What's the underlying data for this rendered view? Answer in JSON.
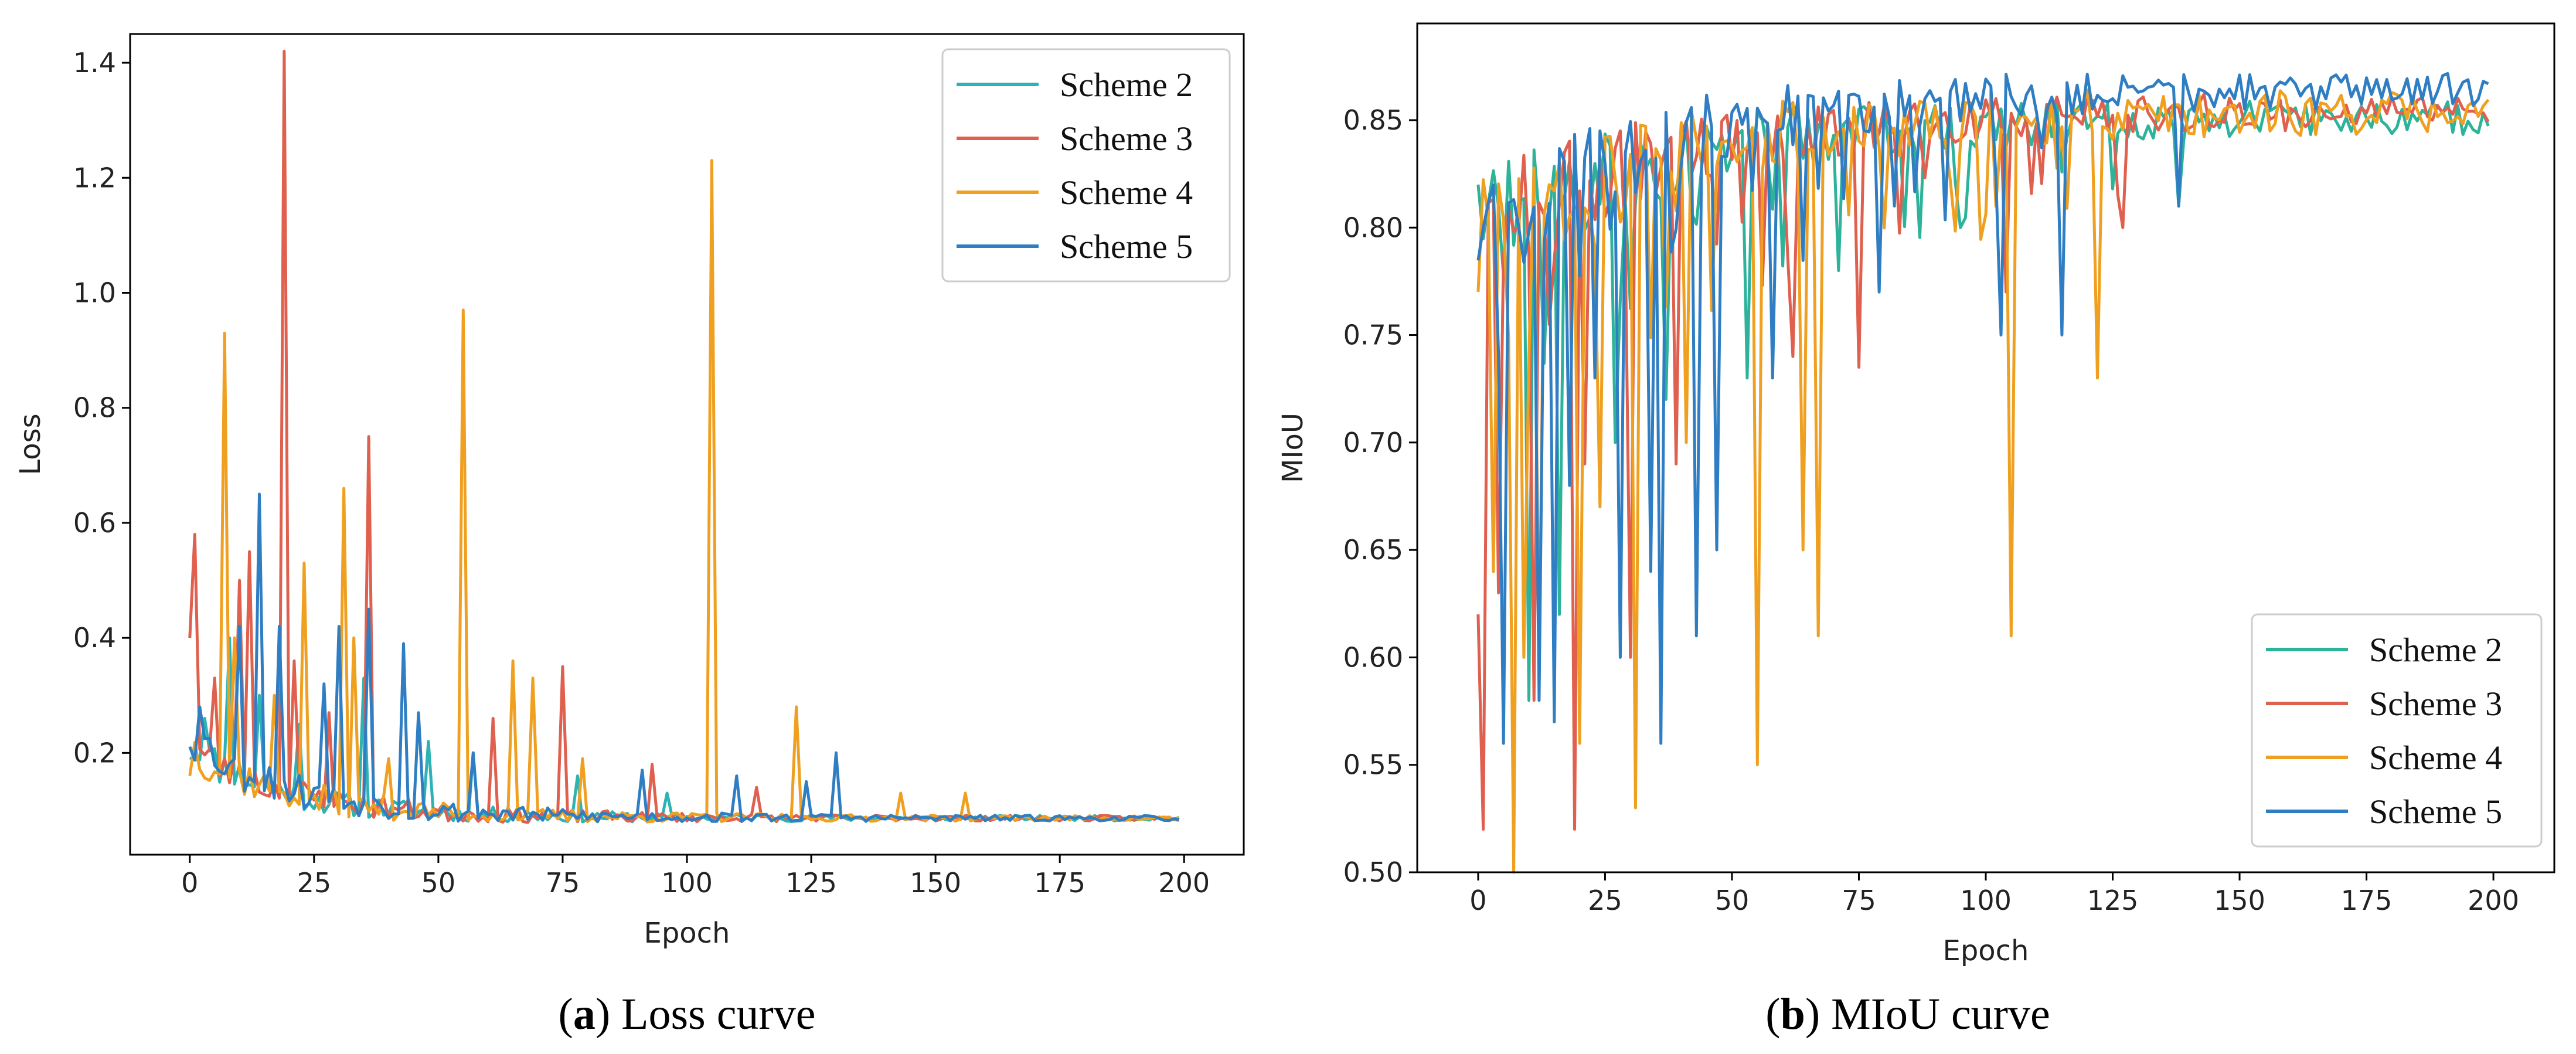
{
  "chart_data": [
    {
      "id": "a",
      "type": "line",
      "caption_letter": "a",
      "caption_text": "Loss curve",
      "title": "",
      "xlabel": "Epoch",
      "ylabel": "Loss",
      "xlim": [
        -12,
        212
      ],
      "ylim": [
        0.023,
        1.45
      ],
      "xticks": [
        0,
        25,
        50,
        75,
        100,
        125,
        150,
        175,
        200
      ],
      "yticks": [
        0.2,
        0.4,
        0.6,
        0.8,
        1.0,
        1.2,
        1.4
      ],
      "ytick_labels": [
        "0.2",
        "0.4",
        "0.6",
        "0.8",
        "1.0",
        "1.2",
        "1.4"
      ],
      "legend_position": "top-right",
      "grid": false,
      "series": [
        {
          "name": "Scheme 2",
          "color": "#2db3b3",
          "base_start": 0.2,
          "base_end": 0.085,
          "noise": 0.035,
          "spikes": [
            [
              3,
              0.26
            ],
            [
              8,
              0.4
            ],
            [
              14,
              0.3
            ],
            [
              22,
              0.25
            ],
            [
              35,
              0.33
            ],
            [
              48,
              0.22
            ],
            [
              57,
              0.2
            ],
            [
              78,
              0.16
            ],
            [
              96,
              0.13
            ]
          ]
        },
        {
          "name": "Scheme 3",
          "color": "#e0604f",
          "base_start": 0.2,
          "base_end": 0.085,
          "noise": 0.04,
          "spikes": [
            [
              0,
              0.4
            ],
            [
              1,
              0.58
            ],
            [
              5,
              0.33
            ],
            [
              10,
              0.5
            ],
            [
              12,
              0.55
            ],
            [
              19,
              1.42
            ],
            [
              21,
              0.36
            ],
            [
              28,
              0.27
            ],
            [
              36,
              0.75
            ],
            [
              61,
              0.26
            ],
            [
              75,
              0.35
            ],
            [
              93,
              0.18
            ],
            [
              114,
              0.14
            ]
          ]
        },
        {
          "name": "Scheme 4",
          "color": "#f0a020",
          "base_start": 0.2,
          "base_end": 0.085,
          "noise": 0.04,
          "spikes": [
            [
              0,
              0.16
            ],
            [
              7,
              0.93
            ],
            [
              9,
              0.4
            ],
            [
              17,
              0.3
            ],
            [
              23,
              0.53
            ],
            [
              31,
              0.66
            ],
            [
              33,
              0.4
            ],
            [
              40,
              0.19
            ],
            [
              55,
              0.97
            ],
            [
              65,
              0.36
            ],
            [
              69,
              0.33
            ],
            [
              79,
              0.19
            ],
            [
              105,
              1.23
            ],
            [
              122,
              0.28
            ],
            [
              143,
              0.13
            ],
            [
              156,
              0.13
            ]
          ]
        },
        {
          "name": "Scheme 5",
          "color": "#2f7ec3",
          "base_start": 0.22,
          "base_end": 0.085,
          "noise": 0.045,
          "spikes": [
            [
              2,
              0.28
            ],
            [
              10,
              0.42
            ],
            [
              14,
              0.65
            ],
            [
              18,
              0.42
            ],
            [
              27,
              0.32
            ],
            [
              30,
              0.42
            ],
            [
              36,
              0.45
            ],
            [
              43,
              0.39
            ],
            [
              46,
              0.27
            ],
            [
              57,
              0.2
            ],
            [
              91,
              0.17
            ],
            [
              110,
              0.16
            ],
            [
              124,
              0.15
            ],
            [
              130,
              0.2
            ]
          ]
        }
      ]
    },
    {
      "id": "b",
      "type": "line",
      "caption_letter": "b",
      "caption_text": "MIoU curve",
      "title": "",
      "xlabel": "Epoch",
      "ylabel": "MIoU",
      "xlim": [
        -12,
        212
      ],
      "ylim": [
        0.5,
        0.895
      ],
      "xticks": [
        0,
        25,
        50,
        75,
        100,
        125,
        150,
        175,
        200
      ],
      "yticks": [
        0.5,
        0.55,
        0.6,
        0.65,
        0.7,
        0.75,
        0.8,
        0.85
      ],
      "ytick_labels": [
        "0.50",
        "0.55",
        "0.60",
        "0.65",
        "0.70",
        "0.75",
        "0.80",
        "0.85"
      ],
      "legend_position": "bottom-right",
      "grid": false,
      "series": [
        {
          "name": "Scheme 2",
          "color": "#2db39a",
          "base_start": 0.8,
          "base_end": 0.852,
          "noise": 0.02,
          "dips": [
            [
              0,
              0.82
            ],
            [
              10,
              0.58
            ],
            [
              16,
              0.62
            ],
            [
              27,
              0.7
            ],
            [
              37,
              0.72
            ],
            [
              53,
              0.73
            ],
            [
              71,
              0.78
            ],
            [
              95,
              0.8
            ],
            [
              138,
              0.81
            ]
          ]
        },
        {
          "name": "Scheme 3",
          "color": "#e0604f",
          "base_start": 0.8,
          "base_end": 0.855,
          "noise": 0.02,
          "dips": [
            [
              0,
              0.62
            ],
            [
              1,
              0.52
            ],
            [
              4,
              0.63
            ],
            [
              11,
              0.58
            ],
            [
              19,
              0.52
            ],
            [
              21,
              0.69
            ],
            [
              30,
              0.6
            ],
            [
              39,
              0.69
            ],
            [
              62,
              0.74
            ],
            [
              75,
              0.735
            ],
            [
              104,
              0.77
            ],
            [
              127,
              0.8
            ]
          ]
        },
        {
          "name": "Scheme 4",
          "color": "#f0a020",
          "base_start": 0.79,
          "base_end": 0.855,
          "noise": 0.025,
          "dips": [
            [
              3,
              0.64
            ],
            [
              7,
              0.5
            ],
            [
              9,
              0.6
            ],
            [
              12,
              0.59
            ],
            [
              20,
              0.56
            ],
            [
              24,
              0.67
            ],
            [
              31,
              0.53
            ],
            [
              41,
              0.7
            ],
            [
              55,
              0.55
            ],
            [
              64,
              0.65
            ],
            [
              67,
              0.61
            ],
            [
              105,
              0.61
            ],
            [
              122,
              0.73
            ]
          ]
        },
        {
          "name": "Scheme 5",
          "color": "#2f7ec3",
          "base_start": 0.8,
          "base_end": 0.865,
          "noise": 0.02,
          "dips": [
            [
              5,
              0.56
            ],
            [
              12,
              0.58
            ],
            [
              15,
              0.57
            ],
            [
              18,
              0.68
            ],
            [
              23,
              0.73
            ],
            [
              28,
              0.6
            ],
            [
              34,
              0.64
            ],
            [
              36,
              0.56
            ],
            [
              43,
              0.61
            ],
            [
              47,
              0.65
            ],
            [
              58,
              0.73
            ],
            [
              79,
              0.77
            ],
            [
              103,
              0.75
            ],
            [
              115,
              0.75
            ],
            [
              138,
              0.81
            ]
          ]
        }
      ]
    }
  ]
}
